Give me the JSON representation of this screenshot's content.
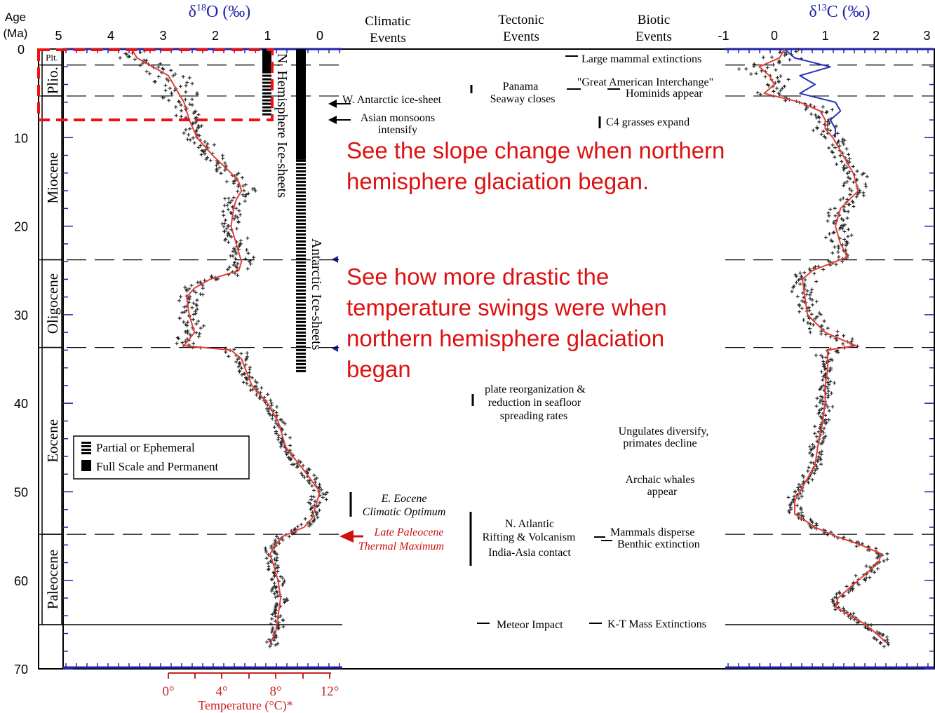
{
  "chart_data": {
    "type": "scatter",
    "y_axis": {
      "label_line1": "Age",
      "label_line2": "(Ma)",
      "ticks": [
        "0",
        "10",
        "20",
        "30",
        "40",
        "50",
        "60",
        "70"
      ],
      "range": [
        0,
        70
      ],
      "inverted": true
    },
    "d18o_axis": {
      "title": "δ18O (‰)",
      "title_delta": "δ",
      "title_sup": "18",
      "title_rest": "O (‰)",
      "ticks": [
        "5",
        "4",
        "3",
        "2",
        "1",
        "0"
      ],
      "range": [
        5,
        -0.5
      ],
      "reversed": true,
      "color": "#2222aa"
    },
    "d13c_axis": {
      "title": "δ13C (‰)",
      "title_delta": "δ",
      "title_sup": "13",
      "title_rest": "C (‰)",
      "ticks": [
        "-1",
        "0",
        "1",
        "2",
        "3"
      ],
      "range": [
        -1,
        3
      ],
      "color": "#2222aa"
    },
    "temperature_axis": {
      "label": "Temperature (°C)*",
      "ticks": [
        "0°",
        "4°",
        "8°",
        "12°"
      ],
      "color": "#cc2222"
    },
    "column_headers": [
      {
        "line1": "Climatic",
        "line2": "Events"
      },
      {
        "line1": "Tectonic",
        "line2": "Events"
      },
      {
        "line1": "Biotic",
        "line2": "Events"
      }
    ],
    "epochs": [
      {
        "label": "Plt.",
        "start": 0,
        "end": 1.8
      },
      {
        "label": "Plio.",
        "start": 1.8,
        "end": 5.3
      },
      {
        "label": "Miocene",
        "start": 5.3,
        "end": 23.8
      },
      {
        "label": "Oligocene",
        "start": 23.8,
        "end": 33.7
      },
      {
        "label": "Eocene",
        "start": 33.7,
        "end": 54.8
      },
      {
        "label": "Paleocene",
        "start": 54.8,
        "end": 65
      }
    ],
    "d18o_series": {
      "name": "δ18O smoothed",
      "points": [
        [
          0,
          3.6
        ],
        [
          1,
          3.5
        ],
        [
          2,
          3.2
        ],
        [
          3,
          2.9
        ],
        [
          4,
          2.8
        ],
        [
          5,
          2.7
        ],
        [
          6,
          2.6
        ],
        [
          8,
          2.5
        ],
        [
          10,
          2.35
        ],
        [
          12,
          2.05
        ],
        [
          14,
          1.7
        ],
        [
          15,
          1.55
        ],
        [
          16,
          1.5
        ],
        [
          17,
          1.6
        ],
        [
          18,
          1.65
        ],
        [
          20,
          1.7
        ],
        [
          22,
          1.6
        ],
        [
          24,
          1.5
        ],
        [
          25,
          1.55
        ],
        [
          26,
          2.1
        ],
        [
          27,
          2.4
        ],
        [
          28,
          2.55
        ],
        [
          30,
          2.5
        ],
        [
          32,
          2.4
        ],
        [
          33.5,
          2.6
        ],
        [
          34,
          1.7
        ],
        [
          35,
          1.5
        ],
        [
          38,
          1.3
        ],
        [
          40,
          1.0
        ],
        [
          42,
          0.8
        ],
        [
          45,
          0.65
        ],
        [
          48,
          0.25
        ],
        [
          50,
          0.0
        ],
        [
          52,
          0.1
        ],
        [
          53,
          0.15
        ],
        [
          54,
          0.3
        ],
        [
          55,
          0.7
        ],
        [
          56,
          0.85
        ],
        [
          57,
          0.95
        ],
        [
          58,
          0.9
        ],
        [
          60,
          0.8
        ],
        [
          62,
          0.75
        ],
        [
          64,
          0.8
        ],
        [
          66,
          0.85
        ],
        [
          67,
          0.95
        ]
      ]
    },
    "d13c_series": {
      "name": "δ13C smoothed",
      "points": [
        [
          0,
          0.2
        ],
        [
          1,
          0.1
        ],
        [
          2,
          -0.3
        ],
        [
          3,
          -0.1
        ],
        [
          4,
          0.0
        ],
        [
          5,
          -0.2
        ],
        [
          6,
          0.5
        ],
        [
          7,
          0.9
        ],
        [
          8,
          1.0
        ],
        [
          9,
          1.0
        ],
        [
          10,
          1.15
        ],
        [
          12,
          1.35
        ],
        [
          14,
          1.55
        ],
        [
          16,
          1.65
        ],
        [
          18,
          1.3
        ],
        [
          20,
          1.2
        ],
        [
          22,
          1.3
        ],
        [
          23.5,
          1.45
        ],
        [
          24,
          1.2
        ],
        [
          25,
          0.75
        ],
        [
          26,
          0.55
        ],
        [
          28,
          0.6
        ],
        [
          30,
          0.65
        ],
        [
          32,
          1.0
        ],
        [
          33.5,
          1.6
        ],
        [
          34,
          1.05
        ],
        [
          36,
          1.05
        ],
        [
          38,
          1.0
        ],
        [
          40,
          1.0
        ],
        [
          42,
          0.95
        ],
        [
          45,
          0.85
        ],
        [
          47,
          0.8
        ],
        [
          49,
          0.6
        ],
        [
          51,
          0.4
        ],
        [
          52.5,
          0.4
        ],
        [
          54,
          0.8
        ],
        [
          55,
          1.2
        ],
        [
          56,
          1.7
        ],
        [
          57,
          2.1
        ],
        [
          58,
          2.05
        ],
        [
          60,
          1.65
        ],
        [
          62,
          1.25
        ],
        [
          63,
          1.2
        ],
        [
          64,
          1.5
        ],
        [
          65,
          1.8
        ],
        [
          66,
          2.0
        ],
        [
          67,
          2.2
        ]
      ]
    },
    "d13c_blue_series": {
      "name": "δ13C (blue)",
      "points": [
        [
          0,
          0.2
        ],
        [
          1,
          0.4
        ],
        [
          2,
          1.1
        ],
        [
          3,
          0.5
        ],
        [
          4,
          0.8
        ],
        [
          5,
          0.5
        ],
        [
          6,
          1.2
        ],
        [
          7,
          1.3
        ],
        [
          8,
          1.1
        ],
        [
          9,
          1.2
        ],
        [
          10,
          1.2
        ]
      ]
    },
    "ice_sheet_bars": {
      "nh_label": "N. Hemisphere Ice-sheets",
      "antarctic_label": "Antarctic Ice-sheets",
      "nh_full": [
        0,
        2.5
      ],
      "nh_partial": [
        2.5,
        7.5
      ],
      "antarctic_full": [
        0,
        12.5
      ],
      "antarctic_partial": [
        12.5,
        36.5
      ]
    },
    "legend": [
      {
        "label": "Partial or Ephemeral",
        "style": "partial"
      },
      {
        "label": "Full Scale and Permanent",
        "style": "full"
      }
    ],
    "climatic_events": [
      {
        "text": "W. Antarctic ice-sheet"
      },
      {
        "text": "Asian monsoons"
      },
      {
        "text": "intensify"
      },
      {
        "text": "E. Eocene"
      },
      {
        "text": "Climatic Optimum"
      },
      {
        "text": "Late Paleocene"
      },
      {
        "text": "Thermal Maximum"
      }
    ],
    "tectonic_events": [
      {
        "text": "Panama"
      },
      {
        "text": "Seaway closes"
      },
      {
        "text": "plate reorganization &"
      },
      {
        "text": "reduction in seafloor"
      },
      {
        "text": "spreading rates"
      },
      {
        "text": "N. Atlantic"
      },
      {
        "text": "Rifting & Volcanism"
      },
      {
        "text": "India-Asia contact"
      },
      {
        "text": "Meteor Impact"
      }
    ],
    "biotic_events": [
      {
        "text": "Large mammal extinctions"
      },
      {
        "text": "\"Great American Interchange\""
      },
      {
        "text": "Hominids appear"
      },
      {
        "text": "C4 grasses expand"
      },
      {
        "text": "Ungulates diversify,"
      },
      {
        "text": "primates decline"
      },
      {
        "text": "Archaic whales"
      },
      {
        "text": "appear"
      },
      {
        "text": "Mammals disperse"
      },
      {
        "text": "Benthic extinction"
      },
      {
        "text": "K-T Mass Extinctions"
      }
    ],
    "annotations": {
      "note1_line1": "See the slope change when northern",
      "note1_line2": "hemisphere glaciation began.",
      "note2_line1": "See how more drastic the",
      "note2_line2": "temperature swings were when",
      "note2_line3": "northern hemisphere glaciation",
      "note2_line4": "began",
      "color": "#dd1111"
    },
    "colors": {
      "smooth_line": "#e0403a",
      "data_points": "#2a2a2a",
      "blue_line": "#2233bb",
      "highlight_box": "#ee1111"
    }
  }
}
